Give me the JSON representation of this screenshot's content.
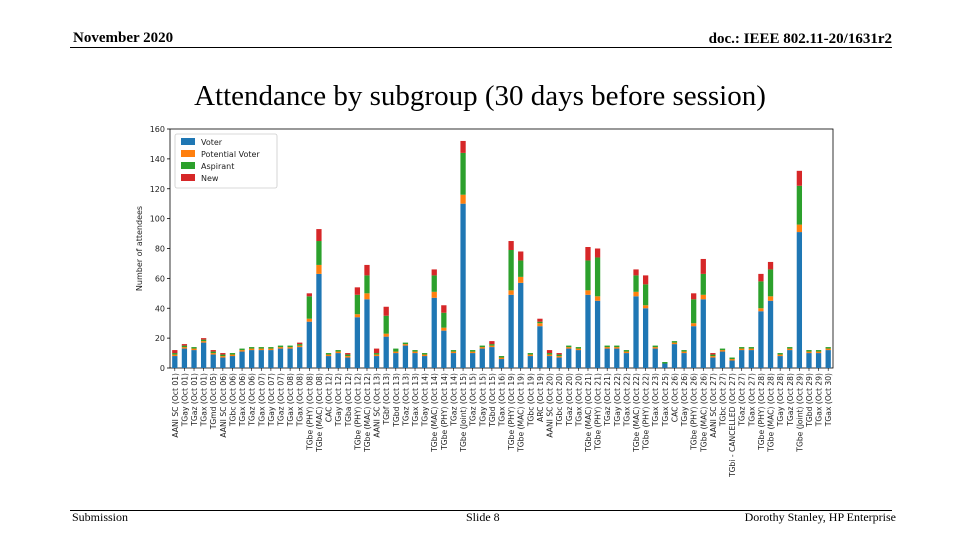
{
  "header": {
    "date": "November 2020",
    "doc": "doc.: IEEE 802.11-20/1631r2"
  },
  "title": "Attendance by subgroup (30 days before session)",
  "footer": {
    "left": "Submission",
    "center": "Slide 8",
    "right": "Dorothy Stanley, HP Enterprise"
  },
  "chart_data": {
    "type": "bar",
    "stacked": true,
    "ylabel": "Number of attendees",
    "ylim": [
      0,
      160
    ],
    "yticks": [
      0,
      20,
      40,
      60,
      80,
      100,
      120,
      140,
      160
    ],
    "legend_position": "top-left",
    "grid": false,
    "colors": {
      "Voter": "#1f77b4",
      "Potential Voter": "#ff7f0e",
      "Aspirant": "#2ca02c",
      "New": "#d62728"
    },
    "categories": [
      "AANI SC (Oct 01)",
      "TGay (Oct 01)",
      "TGaz (Oct 01)",
      "TGax (Oct 01)",
      "TGmd (Oct 05)",
      "AANI SC (Oct 06)",
      "TGbc (Oct 06)",
      "TGax (Oct 06)",
      "TGaz (Oct 06)",
      "TGax (Oct 07)",
      "TGay (Oct 07)",
      "TGaz (Oct 07)",
      "TGax (Oct 08)",
      "TGax (Oct 08)",
      "TGbe (PHY) (Oct 08)",
      "TGbe (MAC) (Oct 08)",
      "CAC (Oct 12)",
      "TGay (Oct 12)",
      "TGba (Oct 12)",
      "TGbe (PHY) (Oct 12)",
      "TGbe (MAC) (Oct 12)",
      "AANI SC (Oct 13)",
      "TGbf (Oct 13)",
      "TGbd (Oct 13)",
      "TGaz (Oct 13)",
      "TGax (Oct 13)",
      "TGay (Oct 14)",
      "TGbe (MAC) (Oct 14)",
      "TGbe (PHY) (Oct 14)",
      "TGaz (Oct 14)",
      "TGbe (Joint) (Oct 15)",
      "TGaz (Oct 15)",
      "TGay (Oct 15)",
      "TGbd (Oct 15)",
      "TGax (Oct 16)",
      "TGbe (PHY) (Oct 19)",
      "TGbe (MAC) (Oct 19)",
      "TGbc (Oct 19)",
      "ARC (Oct 19)",
      "AANI SC (Oct 20)",
      "TGbc (Oct 20)",
      "TGaz (Oct 20)",
      "TGax (Oct 20)",
      "TGbe (MAC) (Oct 21)",
      "TGbe (PHY) (Oct 21)",
      "TGaz (Oct 21)",
      "TGay (Oct 22)",
      "TGax (Oct 22)",
      "TGbe (MAC) (Oct 22)",
      "TGbe (PHY) (Oct 22)",
      "TGax (Oct 23)",
      "TGax (Oct 25)",
      "CAC (Oct 26)",
      "TGay (Oct 26)",
      "TGbe (PHY) (Oct 26)",
      "TGbe (MAC) (Oct 26)",
      "AANI SC (Oct 27)",
      "TGbc (Oct 27)",
      "TGbi - CANCELLED (Oct 27)",
      "TGaz (Oct 27)",
      "TGax (Oct 27)",
      "TGbe (PHY) (Oct 28)",
      "TGbe (MAC) (Oct 28)",
      "TGay (Oct 28)",
      "TGaz (Oct 28)",
      "TGbe (Joint) (Oct 29)",
      "TGbd (Oct 29)",
      "TGax (Oct 29)",
      "TGax (Oct 30)"
    ],
    "series": [
      {
        "name": "Voter",
        "values": [
          8,
          13,
          12,
          17,
          9,
          7,
          8,
          11,
          12,
          12,
          12,
          13,
          13,
          14,
          31,
          63,
          8,
          10,
          7,
          34,
          46,
          8,
          21,
          10,
          15,
          10,
          8,
          47,
          25,
          10,
          110,
          10,
          13,
          14,
          6,
          49,
          57,
          8,
          28,
          8,
          7,
          13,
          12,
          49,
          45,
          13,
          13,
          10,
          48,
          40,
          13,
          3,
          16,
          10,
          28,
          46,
          7,
          11,
          5,
          12,
          12,
          38,
          45,
          8,
          12,
          91,
          10,
          10,
          12
        ]
      },
      {
        "name": "Potential Voter",
        "values": [
          1,
          1,
          1,
          1,
          1,
          1,
          1,
          1,
          1,
          1,
          1,
          1,
          1,
          1,
          2,
          6,
          1,
          1,
          1,
          2,
          4,
          1,
          2,
          1,
          1,
          1,
          1,
          4,
          2,
          1,
          6,
          1,
          1,
          1,
          1,
          3,
          4,
          1,
          2,
          1,
          1,
          1,
          1,
          3,
          3,
          1,
          1,
          1,
          3,
          2,
          1,
          0,
          1,
          1,
          2,
          3,
          1,
          1,
          1,
          1,
          1,
          2,
          3,
          1,
          1,
          5,
          1,
          1,
          1
        ]
      },
      {
        "name": "Aspirant",
        "values": [
          1,
          1,
          1,
          1,
          1,
          1,
          1,
          1,
          1,
          1,
          1,
          1,
          1,
          1,
          15,
          16,
          1,
          1,
          1,
          13,
          12,
          1,
          12,
          2,
          1,
          1,
          1,
          11,
          10,
          1,
          28,
          1,
          1,
          1,
          1,
          27,
          11,
          1,
          1,
          1,
          1,
          1,
          1,
          20,
          26,
          1,
          1,
          1,
          11,
          14,
          1,
          1,
          1,
          1,
          16,
          14,
          1,
          1,
          1,
          1,
          1,
          18,
          18,
          1,
          1,
          26,
          1,
          1,
          1
        ]
      },
      {
        "name": "New",
        "values": [
          2,
          1,
          0,
          1,
          1,
          1,
          0,
          0,
          0,
          0,
          0,
          0,
          0,
          1,
          2,
          8,
          0,
          0,
          1,
          5,
          7,
          3,
          6,
          0,
          0,
          0,
          0,
          4,
          5,
          0,
          8,
          0,
          0,
          2,
          0,
          6,
          6,
          0,
          2,
          2,
          1,
          0,
          0,
          9,
          6,
          0,
          0,
          0,
          4,
          6,
          0,
          0,
          0,
          0,
          4,
          10,
          1,
          0,
          0,
          0,
          0,
          5,
          5,
          0,
          0,
          10,
          0,
          0,
          0
        ]
      }
    ]
  }
}
